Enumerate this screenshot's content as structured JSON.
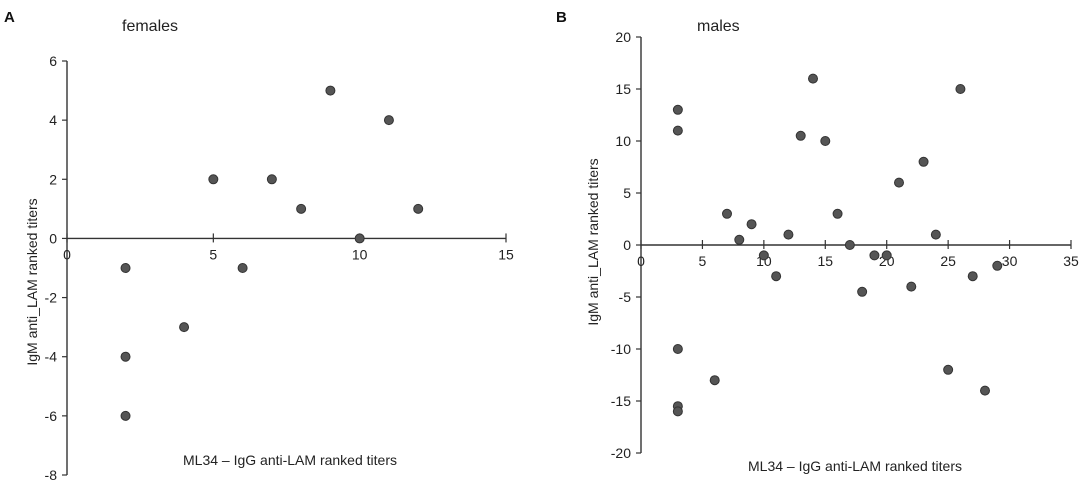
{
  "chart_data": [
    {
      "type": "scatter",
      "panel_label": "A",
      "title": "females",
      "xlabel": "ML34 – IgG anti-LAM ranked titers",
      "ylabel": "IgM anti_LAM ranked titers",
      "xlim": [
        0,
        15
      ],
      "ylim": [
        -8,
        6
      ],
      "xticks": [
        0,
        5,
        10,
        15
      ],
      "yticks": [
        6,
        4,
        2,
        0,
        -2,
        -4,
        -6,
        -8
      ],
      "points": [
        {
          "x": 2,
          "y": -1
        },
        {
          "x": 2,
          "y": -4
        },
        {
          "x": 2,
          "y": -6
        },
        {
          "x": 4,
          "y": -3
        },
        {
          "x": 5,
          "y": 2
        },
        {
          "x": 6,
          "y": -1
        },
        {
          "x": 7,
          "y": 2
        },
        {
          "x": 8,
          "y": 1
        },
        {
          "x": 9,
          "y": 5
        },
        {
          "x": 10,
          "y": 0
        },
        {
          "x": 11,
          "y": 4
        },
        {
          "x": 12,
          "y": 1
        }
      ]
    },
    {
      "type": "scatter",
      "panel_label": "B",
      "title": "males",
      "xlabel": "ML34 – IgG anti-LAM ranked titers",
      "ylabel": "IgM anti_LAM ranked titers",
      "xlim": [
        0,
        35
      ],
      "ylim": [
        -20,
        20
      ],
      "xticks": [
        0,
        5,
        10,
        15,
        20,
        25,
        30,
        35
      ],
      "yticks": [
        20,
        15,
        10,
        5,
        0,
        -5,
        -10,
        -15,
        -20
      ],
      "points": [
        {
          "x": 3,
          "y": 13
        },
        {
          "x": 3,
          "y": 11
        },
        {
          "x": 3,
          "y": -10
        },
        {
          "x": 3,
          "y": -15.5
        },
        {
          "x": 3,
          "y": -16
        },
        {
          "x": 6,
          "y": -13
        },
        {
          "x": 7,
          "y": 3
        },
        {
          "x": 8,
          "y": 0.5
        },
        {
          "x": 9,
          "y": 2
        },
        {
          "x": 10,
          "y": -1
        },
        {
          "x": 11,
          "y": -3
        },
        {
          "x": 12,
          "y": 1
        },
        {
          "x": 13,
          "y": 10.5
        },
        {
          "x": 14,
          "y": 16
        },
        {
          "x": 15,
          "y": 10
        },
        {
          "x": 16,
          "y": 3
        },
        {
          "x": 17,
          "y": 0
        },
        {
          "x": 18,
          "y": -4.5
        },
        {
          "x": 19,
          "y": -1
        },
        {
          "x": 20,
          "y": -1
        },
        {
          "x": 21,
          "y": 6
        },
        {
          "x": 22,
          "y": -4
        },
        {
          "x": 23,
          "y": 8
        },
        {
          "x": 24,
          "y": 1
        },
        {
          "x": 25,
          "y": -12
        },
        {
          "x": 26,
          "y": 15
        },
        {
          "x": 27,
          "y": -3
        },
        {
          "x": 28,
          "y": -14
        },
        {
          "x": 29,
          "y": -2
        }
      ]
    }
  ]
}
